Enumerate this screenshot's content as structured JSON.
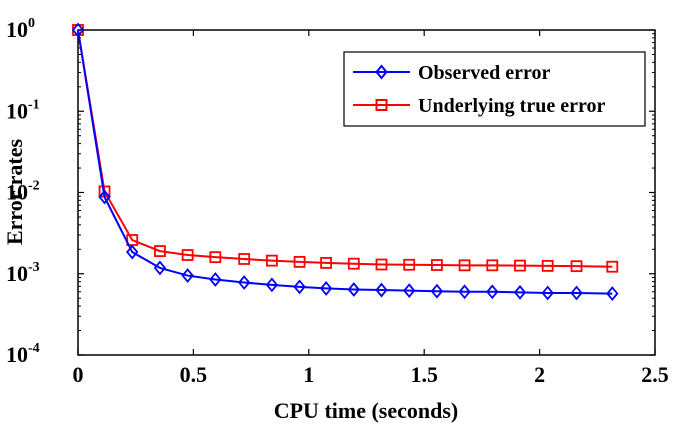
{
  "chart_data": {
    "type": "line",
    "xlabel": "CPU time (seconds)",
    "ylabel": "Error rates",
    "xlim": [
      0,
      2.5
    ],
    "ylim": [
      0.0001,
      1
    ],
    "yscale": "log",
    "xticks": [
      "0",
      "0.5",
      "1",
      "1.5",
      "2",
      "2.5"
    ],
    "yticks": [
      {
        "base": "10",
        "exp": "-4"
      },
      {
        "base": "10",
        "exp": "-3"
      },
      {
        "base": "10",
        "exp": "-2"
      },
      {
        "base": "10",
        "exp": "-1"
      },
      {
        "base": "10",
        "exp": "0"
      }
    ],
    "ytick_values": [
      0.0001,
      0.001,
      0.01,
      0.1,
      1
    ],
    "xtick_values": [
      0,
      0.5,
      1,
      1.5,
      2,
      2.5
    ],
    "legend_position": "top-right",
    "grid": false,
    "x": [
      0,
      0.115,
      0.235,
      0.355,
      0.475,
      0.595,
      0.72,
      0.84,
      0.96,
      1.075,
      1.195,
      1.315,
      1.435,
      1.555,
      1.675,
      1.795,
      1.915,
      2.035,
      2.16,
      2.315
    ],
    "series": [
      {
        "name": "Observed error",
        "color": "#0000ff",
        "marker": "diamond",
        "values": [
          1.0,
          0.0088,
          0.00185,
          0.00118,
          0.00095,
          0.00085,
          0.00078,
          0.00073,
          0.00069,
          0.00066,
          0.00064,
          0.00063,
          0.00062,
          0.00061,
          0.0006,
          0.0006,
          0.00059,
          0.00058,
          0.00058,
          0.00057
        ]
      },
      {
        "name": "Underlying true error",
        "color": "#ff0000",
        "marker": "square",
        "values": [
          1.0,
          0.0103,
          0.0026,
          0.0019,
          0.0017,
          0.0016,
          0.00152,
          0.00145,
          0.0014,
          0.00136,
          0.00133,
          0.0013,
          0.00129,
          0.00128,
          0.00127,
          0.00127,
          0.00126,
          0.00125,
          0.00124,
          0.00122
        ]
      }
    ]
  }
}
